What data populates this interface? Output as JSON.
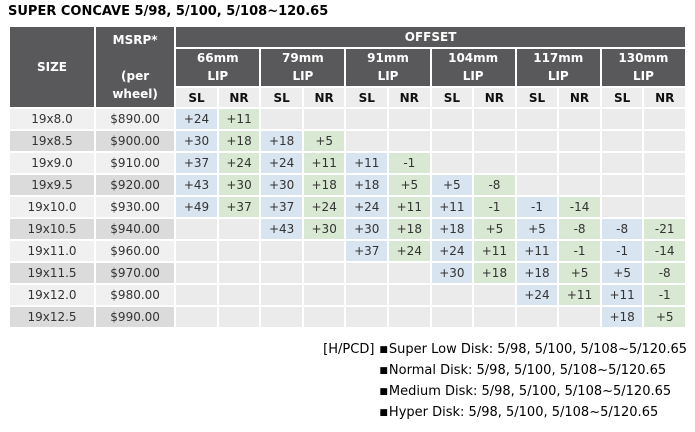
{
  "title": "SUPER CONCAVE 5/98, 5/100, 5/108~120.65",
  "colors": {
    "header_bg": "#59595b",
    "header_text": "#ffffff",
    "subheader_bg": "#ededed",
    "sl_bg": "#d8e4f0",
    "nr_bg": "#d9e8d2",
    "empty_bg": "#ebebeb",
    "row_light_bg": "#f0f0f0",
    "row_dark_bg": "#dbdbdb",
    "body_text": "#333333"
  },
  "table": {
    "size_label": "SIZE",
    "msrp_label": "MSRP*\n\n(per\nwheel)",
    "offset_label": "OFFSET",
    "lip_labels": [
      "66mm\nLIP",
      "79mm\nLIP",
      "91mm\nLIP",
      "104mm\nLIP",
      "117mm\nLIP",
      "130mm\nLIP"
    ],
    "sl_label": "SL",
    "nr_label": "NR",
    "rows": [
      {
        "size": "19x8.0",
        "msrp": "$890.00",
        "offsets": [
          "+24",
          "+11",
          "",
          "",
          "",
          "",
          "",
          "",
          "",
          "",
          "",
          ""
        ]
      },
      {
        "size": "19x8.5",
        "msrp": "$900.00",
        "offsets": [
          "+30",
          "+18",
          "+18",
          "+5",
          "",
          "",
          "",
          "",
          "",
          "",
          "",
          ""
        ]
      },
      {
        "size": "19x9.0",
        "msrp": "$910.00",
        "offsets": [
          "+37",
          "+24",
          "+24",
          "+11",
          "+11",
          "-1",
          "",
          "",
          "",
          "",
          "",
          ""
        ]
      },
      {
        "size": "19x9.5",
        "msrp": "$920.00",
        "offsets": [
          "+43",
          "+30",
          "+30",
          "+18",
          "+18",
          "+5",
          "+5",
          "-8",
          "",
          "",
          "",
          ""
        ]
      },
      {
        "size": "19x10.0",
        "msrp": "$930.00",
        "offsets": [
          "+49",
          "+37",
          "+37",
          "+24",
          "+24",
          "+11",
          "+11",
          "-1",
          "-1",
          "-14",
          "",
          ""
        ]
      },
      {
        "size": "19x10.5",
        "msrp": "$940.00",
        "offsets": [
          "",
          "",
          "+43",
          "+30",
          "+30",
          "+18",
          "+18",
          "+5",
          "+5",
          "-8",
          "-8",
          "-21"
        ]
      },
      {
        "size": "19x11.0",
        "msrp": "$960.00",
        "offsets": [
          "",
          "",
          "",
          "",
          "+37",
          "+24",
          "+24",
          "+11",
          "+11",
          "-1",
          "-1",
          "-14"
        ]
      },
      {
        "size": "19x11.5",
        "msrp": "$970.00",
        "offsets": [
          "",
          "",
          "",
          "",
          "",
          "",
          "+30",
          "+18",
          "+18",
          "+5",
          "+5",
          "-8"
        ]
      },
      {
        "size": "19x12.0",
        "msrp": "$980.00",
        "offsets": [
          "",
          "",
          "",
          "",
          "",
          "",
          "",
          "",
          "+24",
          "+11",
          "+11",
          "-1"
        ]
      },
      {
        "size": "19x12.5",
        "msrp": "$990.00",
        "offsets": [
          "",
          "",
          "",
          "",
          "",
          "",
          "",
          "",
          "",
          "",
          "+18",
          "+5"
        ]
      }
    ]
  },
  "footnote": {
    "prefix": "[H/PCD]",
    "bullet": "■",
    "items": [
      "Super Low Disk: 5/98, 5/100, 5/108~5/120.65",
      "Normal Disk: 5/98, 5/100, 5/108~5/120.65",
      "Medium Disk: 5/98, 5/100, 5/108~5/120.65",
      "Hyper Disk: 5/98, 5/100, 5/108~5/120.65"
    ]
  }
}
